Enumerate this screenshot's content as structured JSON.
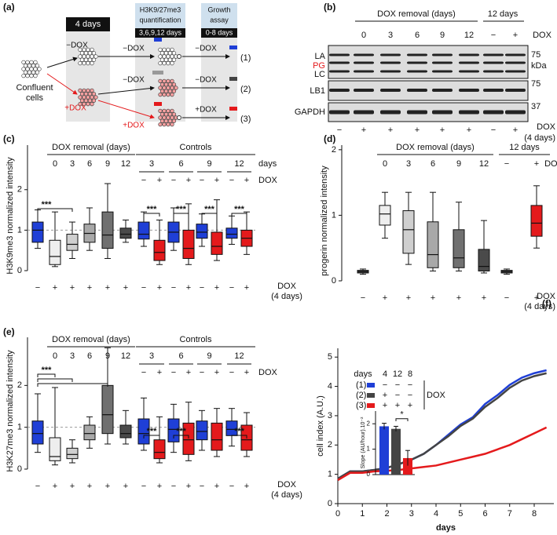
{
  "diagram": {
    "label": "(a)",
    "step1": "4 days",
    "step2": [
      "H3K9/27me3",
      "quantification"
    ],
    "step2_days": "3,6,9,12 days",
    "step3": [
      "Growth",
      "assay"
    ],
    "step3_days": "0-8 days",
    "start": [
      "Confluent",
      "cells"
    ],
    "minus_dox": "−DOX",
    "plus_dox": "+DOX",
    "outcomes": [
      "(1)",
      "(2)",
      "(3)"
    ]
  },
  "blot": {
    "label": "(b)",
    "header": "DOX removal (days)",
    "days": [
      "0",
      "3",
      "6",
      "9",
      "12"
    ],
    "group2": "12 days",
    "group2_dox": [
      "−",
      "+"
    ],
    "dox": "DOX",
    "bands": [
      "LA",
      "PG",
      "LC",
      "LB1",
      "GAPDH"
    ],
    "markers": [
      "75",
      "kDa",
      "75",
      "37"
    ],
    "bottom": [
      "−",
      "+",
      "+",
      "+",
      "+",
      "+",
      "−",
      "+"
    ],
    "bottom_label": [
      "DOX",
      "(4 days)"
    ]
  },
  "chart_data": [
    {
      "type": "box",
      "panel": "(c)",
      "ylabel": "H3K9me3 normalized intensity",
      "ylim": [
        0,
        3.1
      ],
      "yticks": [
        0,
        1,
        2
      ],
      "reference_line": 1,
      "groups": [
        {
          "label": "DOX removal (days)",
          "days": [
            "0",
            "3",
            "6",
            "9",
            "12"
          ]
        },
        {
          "label": "Controls",
          "days": [
            "3",
            "6",
            "9",
            "12"
          ],
          "dox": [
            "−",
            "+",
            "−",
            "+",
            "−",
            "+",
            "−",
            "+"
          ]
        }
      ],
      "days_label": "days",
      "dox_label": "DOX",
      "xlabel": [
        "DOX",
        "(4 days)"
      ],
      "x_labels": [
        "−",
        "+",
        "+",
        "+",
        "+",
        "+",
        "−",
        "+",
        "−",
        "+",
        "−",
        "+",
        "−",
        "+"
      ],
      "colors": [
        "#1f3fd6",
        "#eeeeee",
        "#cfcfcf",
        "#a8a8a8",
        "#707070",
        "#4a4a4a",
        "#1f3fd6",
        "#e41a1c",
        "#1f3fd6",
        "#e41a1c",
        "#1f3fd6",
        "#e41a1c",
        "#1f3fd6",
        "#e41a1c"
      ],
      "boxes": [
        [
          0.55,
          0.7,
          1.0,
          1.2,
          1.5
        ],
        [
          0.1,
          0.15,
          0.35,
          0.75,
          1.45
        ],
        [
          0.3,
          0.5,
          0.65,
          0.9,
          1.2
        ],
        [
          0.5,
          0.7,
          0.92,
          1.15,
          1.55
        ],
        [
          0.3,
          0.55,
          0.88,
          1.45,
          2.15
        ],
        [
          0.7,
          0.8,
          0.9,
          1.05,
          1.25
        ],
        [
          0.6,
          0.78,
          0.9,
          1.2,
          1.45
        ],
        [
          0.15,
          0.25,
          0.45,
          0.75,
          1.25
        ],
        [
          0.5,
          0.7,
          0.95,
          1.2,
          1.55
        ],
        [
          0.15,
          0.3,
          0.55,
          1.0,
          1.65
        ],
        [
          0.6,
          0.8,
          0.95,
          1.15,
          1.4
        ],
        [
          0.25,
          0.4,
          0.6,
          0.95,
          1.75
        ],
        [
          0.65,
          0.8,
          0.9,
          1.05,
          1.35
        ],
        [
          0.4,
          0.6,
          0.8,
          1.0,
          1.45
        ]
      ],
      "significance": [
        "***",
        "***",
        "***",
        "***",
        "***"
      ]
    },
    {
      "type": "box",
      "panel": "(d)",
      "ylabel": "progerin normalized intensity",
      "ylim": [
        0,
        2.07
      ],
      "yticks": [
        0,
        1,
        2
      ],
      "groups": [
        {
          "label": "DOX removal (days)",
          "days": [
            "0",
            "3",
            "6",
            "9",
            "12"
          ]
        },
        {
          "label": "12 days",
          "dox": [
            "−",
            "+"
          ]
        }
      ],
      "dox_label": "DOX",
      "xlabel": [
        "DOX",
        "(4 days)"
      ],
      "x_labels": [
        "−",
        "+",
        "+",
        "+",
        "+",
        "+",
        "−",
        "+"
      ],
      "colors": [
        "#4a4a4a",
        "#eeeeee",
        "#cfcfcf",
        "#a8a8a8",
        "#707070",
        "#4a4a4a",
        "#4a4a4a",
        "#e41a1c"
      ],
      "boxes": [
        [
          0.1,
          0.12,
          0.14,
          0.16,
          0.18
        ],
        [
          0.65,
          0.85,
          1.02,
          1.15,
          1.35
        ],
        [
          0.25,
          0.42,
          0.78,
          1.07,
          1.35
        ],
        [
          0.15,
          0.2,
          0.4,
          0.9,
          1.35
        ],
        [
          0.15,
          0.2,
          0.35,
          0.78,
          1.2
        ],
        [
          0.12,
          0.15,
          0.22,
          0.48,
          0.92
        ],
        [
          0.1,
          0.12,
          0.14,
          0.16,
          0.18
        ],
        [
          0.5,
          0.68,
          0.88,
          1.15,
          1.45
        ]
      ]
    },
    {
      "type": "box",
      "panel": "(e)",
      "ylabel": "H3K27me3 normalized intensity",
      "ylim": [
        0,
        3.15
      ],
      "yticks": [
        0,
        1,
        2
      ],
      "reference_line": 1,
      "groups": [
        {
          "label": "DOX removal (days)",
          "days": [
            "0",
            "3",
            "6",
            "9",
            "12"
          ]
        },
        {
          "label": "Controls",
          "days": [
            "3",
            "6",
            "9",
            "12"
          ],
          "dox": [
            "−",
            "+",
            "−",
            "+",
            "−",
            "+",
            "−",
            "+"
          ]
        }
      ],
      "dox_label": "DOX",
      "xlabel": [
        "DOX",
        "(4 days)"
      ],
      "x_labels": [
        "−",
        "+",
        "+",
        "+",
        "+",
        "+",
        "−",
        "+",
        "−",
        "+",
        "−",
        "+",
        "−",
        "+"
      ],
      "colors": [
        "#1f3fd6",
        "#eeeeee",
        "#cfcfcf",
        "#a8a8a8",
        "#707070",
        "#4a4a4a",
        "#1f3fd6",
        "#e41a1c",
        "#1f3fd6",
        "#e41a1c",
        "#1f3fd6",
        "#e41a1c",
        "#1f3fd6",
        "#e41a1c"
      ],
      "boxes": [
        [
          0.4,
          0.6,
          0.85,
          1.15,
          1.8
        ],
        [
          0.1,
          0.2,
          0.3,
          0.75,
          1.95
        ],
        [
          0.15,
          0.25,
          0.35,
          0.5,
          0.7
        ],
        [
          0.5,
          0.7,
          0.85,
          1.05,
          1.25
        ],
        [
          0.6,
          0.85,
          1.3,
          2.0,
          2.9
        ],
        [
          0.6,
          0.75,
          0.85,
          1.05,
          1.4
        ],
        [
          0.45,
          0.6,
          0.85,
          1.2,
          1.7
        ],
        [
          0.15,
          0.25,
          0.4,
          0.7,
          1.25
        ],
        [
          0.4,
          0.65,
          0.95,
          1.2,
          1.55
        ],
        [
          0.2,
          0.35,
          0.7,
          1.1,
          1.6
        ],
        [
          0.45,
          0.7,
          0.9,
          1.15,
          1.4
        ],
        [
          0.3,
          0.45,
          0.7,
          1.1,
          1.45
        ],
        [
          0.55,
          0.8,
          0.95,
          1.15,
          1.45
        ],
        [
          0.3,
          0.45,
          0.7,
          1.05,
          1.35
        ]
      ],
      "significance": [
        "***",
        "***",
        "***",
        "***"
      ]
    },
    {
      "type": "line",
      "panel": "(f)",
      "ylabel": "cell index (A.U.)",
      "xlabel": "days",
      "xlim": [
        0,
        8.8
      ],
      "ylim": [
        0,
        5.3
      ],
      "xticks": [
        0,
        1,
        2,
        3,
        4,
        5,
        6,
        7,
        8
      ],
      "yticks": [
        0,
        1,
        2,
        3,
        4,
        5
      ],
      "x": [
        0,
        0.5,
        1,
        1.5,
        2,
        2.5,
        3,
        3.5,
        4,
        4.5,
        5,
        5.5,
        6,
        6.5,
        7,
        7.5,
        8,
        8.5
      ],
      "series": [
        {
          "name": "(1)",
          "color": "#1f3fd6",
          "values": [
            0.85,
            1.1,
            1.1,
            1.15,
            1.22,
            1.35,
            1.5,
            1.7,
            2.0,
            2.35,
            2.7,
            2.95,
            3.4,
            3.7,
            4.05,
            4.3,
            4.45,
            4.55
          ]
        },
        {
          "name": "(2)",
          "color": "#444444",
          "values": [
            0.85,
            1.1,
            1.1,
            1.15,
            1.22,
            1.35,
            1.5,
            1.7,
            2.0,
            2.3,
            2.65,
            2.9,
            3.3,
            3.6,
            3.95,
            4.2,
            4.35,
            4.45
          ]
        },
        {
          "name": "(3)",
          "color": "#e41a1c",
          "values": [
            0.8,
            1.05,
            1.05,
            1.1,
            1.12,
            1.15,
            1.2,
            1.25,
            1.3,
            1.4,
            1.5,
            1.6,
            1.7,
            1.85,
            2.0,
            2.2,
            2.4,
            2.6
          ]
        }
      ],
      "legend": {
        "header": "days",
        "columns": [
          "4",
          "12",
          "8"
        ],
        "rows": [
          [
            "−",
            "−",
            "−"
          ],
          [
            "+",
            "−",
            "−"
          ],
          [
            "+",
            "+",
            "+"
          ]
        ],
        "label": "DOX"
      }
    },
    {
      "type": "bar",
      "ylabel": "Slope (AU/hour).10⁻²",
      "ylim": [
        0,
        2.5
      ],
      "yticks": [
        0,
        1,
        2
      ],
      "values": [
        1.9,
        1.8,
        0.65
      ],
      "errors": [
        0.12,
        0.1,
        0.3
      ],
      "colors": [
        "#1f3fd6",
        "#444444",
        "#e41a1c"
      ],
      "significance": "*"
    }
  ]
}
